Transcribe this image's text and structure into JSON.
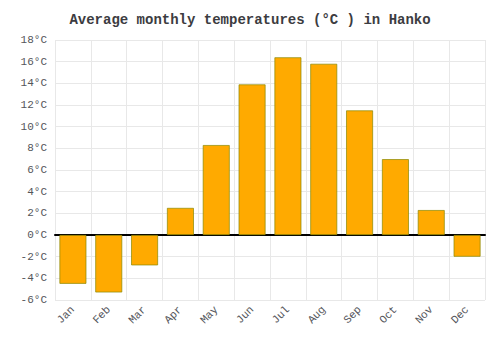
{
  "chart_data": {
    "type": "bar",
    "title": "Average monthly temperatures (°C ) in Hanko",
    "categories": [
      "Jan",
      "Feb",
      "Mar",
      "Apr",
      "May",
      "Jun",
      "Jul",
      "Aug",
      "Sep",
      "Oct",
      "Nov",
      "Dec"
    ],
    "values": [
      -4.5,
      -5.3,
      -2.8,
      2.5,
      8.3,
      13.9,
      16.4,
      15.8,
      11.5,
      7.0,
      2.3,
      -2.0
    ],
    "color": "#FFAA00",
    "ylim": [
      -6,
      18
    ],
    "yticks": [
      {
        "value": -6,
        "label": "-6°C"
      },
      {
        "value": -4,
        "label": "-4°C"
      },
      {
        "value": -2,
        "label": "-2°C"
      },
      {
        "value": 0,
        "label": "0°C"
      },
      {
        "value": 2,
        "label": "2°C"
      },
      {
        "value": 4,
        "label": "4°C"
      },
      {
        "value": 6,
        "label": "6°C"
      },
      {
        "value": 8,
        "label": "8°C"
      },
      {
        "value": 10,
        "label": "10°C"
      },
      {
        "value": 12,
        "label": "12°C"
      },
      {
        "value": 14,
        "label": "14°C"
      },
      {
        "value": 16,
        "label": "16°C"
      },
      {
        "value": 18,
        "label": "18°C"
      }
    ],
    "grid": true
  }
}
